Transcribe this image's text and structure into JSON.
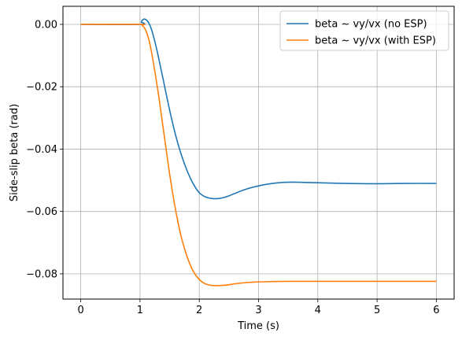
{
  "chart_data": {
    "type": "line",
    "title": "",
    "xlabel": "Time (s)",
    "ylabel": "Side-slip beta (rad)",
    "xlim": [
      -0.3,
      6.3
    ],
    "ylim": [
      -0.0881,
      0.0058
    ],
    "xticks": [
      0,
      1,
      2,
      3,
      4,
      5,
      6
    ],
    "xtick_labels": [
      "0",
      "1",
      "2",
      "3",
      "4",
      "5",
      "6"
    ],
    "yticks": [
      0.0,
      -0.02,
      -0.04,
      -0.06,
      -0.08
    ],
    "ytick_labels": [
      "0.00",
      "−0.02",
      "−0.04",
      "−0.06",
      "−0.08"
    ],
    "grid": true,
    "legend_position": "top-right",
    "series": [
      {
        "name": "beta ~ vy/vx (no ESP)",
        "color": "#1f77b4",
        "x": [
          0,
          1.0,
          1.02,
          1.05,
          1.08,
          1.12,
          1.16,
          1.2,
          1.25,
          1.3,
          1.4,
          1.5,
          1.6,
          1.7,
          1.8,
          1.9,
          2.0,
          2.1,
          2.2,
          2.3,
          2.4,
          2.5,
          2.6,
          2.8,
          3.0,
          3.2,
          3.4,
          3.6,
          3.8,
          4.0,
          4.5,
          5.0,
          5.5,
          6.0
        ],
        "y": [
          0.0,
          0.0,
          0.0008,
          0.0015,
          0.0017,
          0.0012,
          0.0,
          -0.002,
          -0.0055,
          -0.0095,
          -0.0185,
          -0.0275,
          -0.0355,
          -0.042,
          -0.0472,
          -0.0512,
          -0.054,
          -0.0553,
          -0.0558,
          -0.0559,
          -0.0556,
          -0.055,
          -0.0542,
          -0.0528,
          -0.0518,
          -0.0511,
          -0.0507,
          -0.0506,
          -0.0507,
          -0.0508,
          -0.051,
          -0.0511,
          -0.051,
          -0.051
        ]
      },
      {
        "name": "beta ~ vy/vx (with ESP)",
        "color": "#ff7f0e",
        "x": [
          0,
          1.0,
          1.03,
          1.06,
          1.1,
          1.15,
          1.2,
          1.3,
          1.4,
          1.5,
          1.6,
          1.7,
          1.8,
          1.9,
          2.0,
          2.1,
          2.2,
          2.3,
          2.4,
          2.5,
          2.6,
          2.8,
          3.0,
          3.2,
          3.5,
          4.0,
          4.5,
          5.0,
          5.5,
          6.0
        ],
        "y": [
          0.0,
          0.0,
          -0.0002,
          -0.0008,
          -0.002,
          -0.005,
          -0.0095,
          -0.021,
          -0.0345,
          -0.048,
          -0.0595,
          -0.0685,
          -0.0748,
          -0.0792,
          -0.0818,
          -0.0832,
          -0.0837,
          -0.0838,
          -0.0837,
          -0.0835,
          -0.0832,
          -0.0828,
          -0.0826,
          -0.0825,
          -0.0824,
          -0.0824,
          -0.0824,
          -0.0824,
          -0.0824,
          -0.0824
        ]
      }
    ]
  }
}
